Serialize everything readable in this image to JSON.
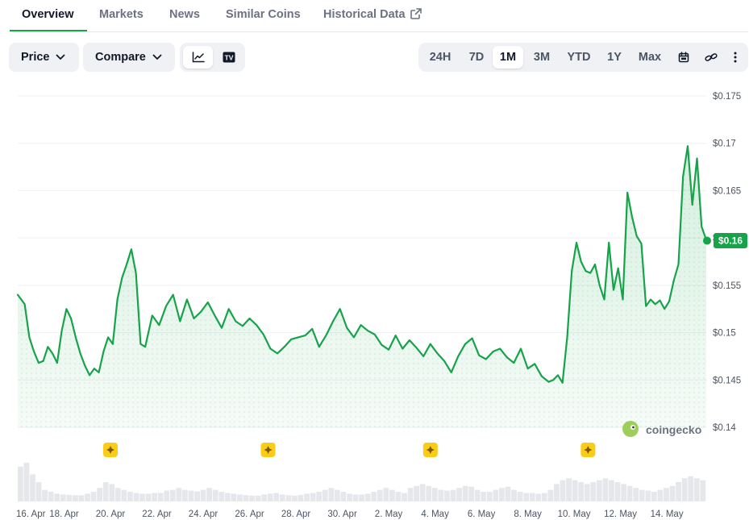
{
  "tabs": [
    {
      "label": "Overview",
      "active": true
    },
    {
      "label": "Markets",
      "active": false
    },
    {
      "label": "News",
      "active": false
    },
    {
      "label": "Similar Coins",
      "active": false
    },
    {
      "label": "Historical Data",
      "active": false,
      "external": true
    }
  ],
  "controls": {
    "price_label": "Price",
    "compare_label": "Compare",
    "chart_type_options": [
      "line-chart-icon",
      "tradingview-icon"
    ],
    "selected_chart_type": "line-chart-icon",
    "tradingview_text": "TV",
    "ranges": [
      "24H",
      "7D",
      "1M",
      "3M",
      "YTD",
      "1Y",
      "Max"
    ],
    "selected_range": "1M",
    "extra_icons": [
      "calendar-icon",
      "link-icon",
      "more-vertical-icon"
    ]
  },
  "colors": {
    "accent": "#16a34a",
    "line": "#16a34a",
    "area": "#dcfce7",
    "event_marker": "#facc15",
    "volume": "#e5e7eb"
  },
  "chart_data": {
    "type": "line",
    "title": "",
    "xlabel": "",
    "ylabel": "",
    "ylim": [
      0.14,
      0.175
    ],
    "y_ticks": [
      "$0.175",
      "$0.17",
      "$0.165",
      "$0.16",
      "$0.155",
      "$0.15",
      "$0.145",
      "$0.14"
    ],
    "y_tick_values": [
      0.175,
      0.17,
      0.165,
      0.16,
      0.155,
      0.15,
      0.145,
      0.14
    ],
    "x_ticks": [
      "16. Apr",
      "18. Apr",
      "20. Apr",
      "22. Apr",
      "24. Apr",
      "26. Apr",
      "28. Apr",
      "30. Apr",
      "2. May",
      "4. May",
      "6. May",
      "8. May",
      "10. May",
      "12. May",
      "14. May"
    ],
    "x_range_days": [
      0,
      29.7
    ],
    "x_tick_days": [
      0,
      2,
      4,
      6,
      8,
      10,
      12,
      14,
      16,
      18,
      20,
      22,
      24,
      26,
      28
    ],
    "series": [
      {
        "x": [
          0.0,
          0.3,
          0.5,
          0.7,
          0.9,
          1.1,
          1.3,
          1.5,
          1.7,
          1.9,
          2.1,
          2.3,
          2.5,
          2.7,
          2.9,
          3.1,
          3.3,
          3.5,
          3.7,
          3.9,
          4.1,
          4.3,
          4.5,
          4.7,
          4.9,
          5.1,
          5.3,
          5.5,
          5.8,
          6.1,
          6.4,
          6.7,
          7.0,
          7.3,
          7.6,
          7.9,
          8.2,
          8.5,
          8.8,
          9.1,
          9.4,
          9.7,
          10.0,
          10.3,
          10.6,
          10.9,
          11.2,
          11.5,
          11.8,
          12.1,
          12.4,
          12.7,
          13.0,
          13.3,
          13.6,
          13.9,
          14.2,
          14.5,
          14.8,
          15.1,
          15.4,
          15.7,
          16.0,
          16.3,
          16.6,
          16.9,
          17.2,
          17.5,
          17.8,
          18.1,
          18.4,
          18.7,
          19.0,
          19.3,
          19.6,
          19.9,
          20.2,
          20.5,
          20.8,
          21.1,
          21.4,
          21.7,
          22.0,
          22.3,
          22.6,
          22.9,
          23.1,
          23.3,
          23.5,
          23.7,
          23.9,
          24.1,
          24.3,
          24.5,
          24.7,
          24.9,
          25.1,
          25.3,
          25.5,
          25.7,
          25.9,
          26.1,
          26.3,
          26.5,
          26.7,
          26.9,
          27.1,
          27.3,
          27.5,
          27.7,
          27.9,
          28.1,
          28.3,
          28.5,
          28.7,
          28.9,
          29.1,
          29.3,
          29.5,
          29.7
        ],
        "y": [
          0.154,
          0.153,
          0.1495,
          0.148,
          0.1468,
          0.147,
          0.1485,
          0.1478,
          0.1468,
          0.1502,
          0.1525,
          0.1515,
          0.1495,
          0.1478,
          0.1465,
          0.1455,
          0.1462,
          0.1458,
          0.148,
          0.1495,
          0.1488,
          0.1535,
          0.1558,
          0.1572,
          0.1588,
          0.1563,
          0.1488,
          0.1485,
          0.1518,
          0.1508,
          0.1528,
          0.154,
          0.1512,
          0.1535,
          0.1515,
          0.1522,
          0.1532,
          0.1518,
          0.1505,
          0.1525,
          0.1512,
          0.1507,
          0.1515,
          0.1508,
          0.1498,
          0.1483,
          0.1478,
          0.1485,
          0.1493,
          0.1495,
          0.1497,
          0.1504,
          0.1485,
          0.1497,
          0.1512,
          0.1525,
          0.1505,
          0.1495,
          0.1508,
          0.1502,
          0.1498,
          0.1487,
          0.1482,
          0.1497,
          0.1483,
          0.1492,
          0.1484,
          0.1475,
          0.1488,
          0.1478,
          0.147,
          0.1458,
          0.1475,
          0.1488,
          0.1494,
          0.1476,
          0.1472,
          0.148,
          0.1483,
          0.1474,
          0.1468,
          0.1483,
          0.1462,
          0.1467,
          0.1454,
          0.1448,
          0.145,
          0.1455,
          0.1447,
          0.1495,
          0.1565,
          0.1595,
          0.1575,
          0.1565,
          0.1563,
          0.1572,
          0.155,
          0.1535,
          0.1595,
          0.1545,
          0.1568,
          0.1535,
          0.1648,
          0.1622,
          0.1602,
          0.1594,
          0.1528,
          0.1535,
          0.153,
          0.1534,
          0.1525,
          0.1533,
          0.1555,
          0.1572,
          0.1665,
          0.1697,
          0.1635,
          0.1684,
          0.1612,
          0.1598
        ]
      }
    ],
    "current_price_label": "$0.16",
    "watermark": "coingecko",
    "event_marker_days": [
      4.0,
      10.8,
      17.8,
      24.6
    ],
    "volume": [
      0.9,
      1.0,
      0.7,
      0.5,
      0.3,
      0.25,
      0.2,
      0.18,
      0.17,
      0.16,
      0.16,
      0.2,
      0.25,
      0.35,
      0.5,
      0.45,
      0.35,
      0.3,
      0.25,
      0.22,
      0.2,
      0.2,
      0.22,
      0.22,
      0.28,
      0.3,
      0.35,
      0.3,
      0.28,
      0.26,
      0.3,
      0.35,
      0.3,
      0.25,
      0.22,
      0.2,
      0.18,
      0.16,
      0.15,
      0.15,
      0.18,
      0.2,
      0.22,
      0.18,
      0.16,
      0.15,
      0.17,
      0.2,
      0.22,
      0.25,
      0.3,
      0.35,
      0.3,
      0.25,
      0.2,
      0.18,
      0.18,
      0.2,
      0.25,
      0.3,
      0.35,
      0.3,
      0.25,
      0.22,
      0.35,
      0.4,
      0.45,
      0.4,
      0.35,
      0.3,
      0.28,
      0.3,
      0.35,
      0.4,
      0.38,
      0.3,
      0.25,
      0.25,
      0.3,
      0.35,
      0.38,
      0.3,
      0.25,
      0.22,
      0.22,
      0.2,
      0.22,
      0.3,
      0.45,
      0.55,
      0.6,
      0.55,
      0.5,
      0.45,
      0.5,
      0.55,
      0.6,
      0.55,
      0.5,
      0.45,
      0.4,
      0.35,
      0.3,
      0.28,
      0.25,
      0.3,
      0.35,
      0.4,
      0.5,
      0.6,
      0.65,
      0.6,
      0.55
    ]
  }
}
